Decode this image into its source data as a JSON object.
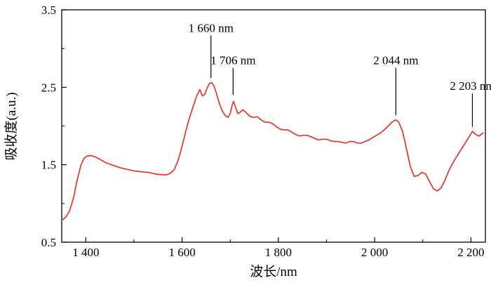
{
  "chart_data": {
    "type": "line",
    "title": "",
    "xlabel": "波长/nm",
    "ylabel": "吸收度(a.u.)",
    "xlim": [
      1350,
      2230
    ],
    "ylim": [
      0.5,
      3.5
    ],
    "grid": false,
    "legend": "none",
    "background": "#ffffff",
    "axis_color": "#000000",
    "line_color": "#e8352a",
    "x_major_ticks": [
      1400,
      1600,
      1800,
      2000,
      2200
    ],
    "x_tick_labels": [
      "1 400",
      "1 600",
      "1 800",
      "2 000",
      "2 200"
    ],
    "x_minor_ticks": [
      1500,
      1700,
      1900,
      2100
    ],
    "y_major_ticks": [
      0.5,
      1.5,
      2.5,
      3.5
    ],
    "y_tick_labels": [
      "0.5",
      "1.5",
      "2.5",
      "3.5"
    ],
    "y_minor_ticks": [
      1.0,
      2.0,
      3.0
    ],
    "series": [
      {
        "name": "absorbance-spectrum",
        "points": [
          [
            1350,
            0.78
          ],
          [
            1358,
            0.82
          ],
          [
            1366,
            0.9
          ],
          [
            1374,
            1.06
          ],
          [
            1382,
            1.3
          ],
          [
            1390,
            1.5
          ],
          [
            1396,
            1.58
          ],
          [
            1402,
            1.61
          ],
          [
            1410,
            1.62
          ],
          [
            1420,
            1.6
          ],
          [
            1432,
            1.56
          ],
          [
            1444,
            1.52
          ],
          [
            1458,
            1.49
          ],
          [
            1472,
            1.46
          ],
          [
            1486,
            1.44
          ],
          [
            1500,
            1.42
          ],
          [
            1515,
            1.41
          ],
          [
            1530,
            1.4
          ],
          [
            1545,
            1.38
          ],
          [
            1558,
            1.37
          ],
          [
            1568,
            1.37
          ],
          [
            1576,
            1.39
          ],
          [
            1584,
            1.44
          ],
          [
            1592,
            1.56
          ],
          [
            1600,
            1.74
          ],
          [
            1608,
            1.94
          ],
          [
            1616,
            2.12
          ],
          [
            1624,
            2.27
          ],
          [
            1631,
            2.4
          ],
          [
            1637,
            2.47
          ],
          [
            1642,
            2.39
          ],
          [
            1647,
            2.41
          ],
          [
            1652,
            2.49
          ],
          [
            1657,
            2.55
          ],
          [
            1661,
            2.56
          ],
          [
            1666,
            2.52
          ],
          [
            1671,
            2.43
          ],
          [
            1677,
            2.3
          ],
          [
            1683,
            2.2
          ],
          [
            1689,
            2.14
          ],
          [
            1695,
            2.11
          ],
          [
            1700,
            2.16
          ],
          [
            1704,
            2.27
          ],
          [
            1707,
            2.32
          ],
          [
            1711,
            2.24
          ],
          [
            1716,
            2.16
          ],
          [
            1721,
            2.18
          ],
          [
            1726,
            2.21
          ],
          [
            1732,
            2.18
          ],
          [
            1740,
            2.13
          ],
          [
            1748,
            2.11
          ],
          [
            1756,
            2.12
          ],
          [
            1764,
            2.08
          ],
          [
            1772,
            2.05
          ],
          [
            1780,
            2.05
          ],
          [
            1788,
            2.03
          ],
          [
            1796,
            1.99
          ],
          [
            1804,
            1.96
          ],
          [
            1812,
            1.95
          ],
          [
            1820,
            1.95
          ],
          [
            1828,
            1.92
          ],
          [
            1836,
            1.89
          ],
          [
            1844,
            1.87
          ],
          [
            1852,
            1.88
          ],
          [
            1860,
            1.88
          ],
          [
            1868,
            1.86
          ],
          [
            1876,
            1.84
          ],
          [
            1884,
            1.82
          ],
          [
            1892,
            1.83
          ],
          [
            1900,
            1.83
          ],
          [
            1908,
            1.81
          ],
          [
            1916,
            1.8
          ],
          [
            1924,
            1.8
          ],
          [
            1932,
            1.79
          ],
          [
            1940,
            1.78
          ],
          [
            1948,
            1.8
          ],
          [
            1956,
            1.8
          ],
          [
            1964,
            1.78
          ],
          [
            1972,
            1.78
          ],
          [
            1980,
            1.8
          ],
          [
            1988,
            1.82
          ],
          [
            1996,
            1.85
          ],
          [
            2004,
            1.88
          ],
          [
            2012,
            1.91
          ],
          [
            2020,
            1.95
          ],
          [
            2028,
            2.0
          ],
          [
            2036,
            2.05
          ],
          [
            2044,
            2.08
          ],
          [
            2050,
            2.05
          ],
          [
            2058,
            1.93
          ],
          [
            2066,
            1.71
          ],
          [
            2074,
            1.48
          ],
          [
            2082,
            1.35
          ],
          [
            2090,
            1.36
          ],
          [
            2098,
            1.4
          ],
          [
            2106,
            1.38
          ],
          [
            2114,
            1.28
          ],
          [
            2122,
            1.19
          ],
          [
            2130,
            1.16
          ],
          [
            2138,
            1.2
          ],
          [
            2146,
            1.3
          ],
          [
            2154,
            1.42
          ],
          [
            2162,
            1.52
          ],
          [
            2170,
            1.6
          ],
          [
            2178,
            1.68
          ],
          [
            2186,
            1.76
          ],
          [
            2194,
            1.84
          ],
          [
            2203,
            1.93
          ],
          [
            2210,
            1.89
          ],
          [
            2217,
            1.87
          ],
          [
            2225,
            1.91
          ]
        ]
      }
    ],
    "annotations": [
      {
        "label": "1 660 nm",
        "x": 1660,
        "label_y": 3.27,
        "line_y1": 3.17,
        "line_y2": 2.62
      },
      {
        "label": "1 706 nm",
        "x": 1706,
        "label_y": 2.85,
        "line_y1": 2.75,
        "line_y2": 2.4
      },
      {
        "label": "2 044 nm",
        "x": 2044,
        "label_y": 2.85,
        "line_y1": 2.75,
        "line_y2": 2.14
      },
      {
        "label": "2 203 nm",
        "x": 2203,
        "label_y": 2.52,
        "line_y1": 2.42,
        "line_y2": 1.99
      }
    ]
  }
}
